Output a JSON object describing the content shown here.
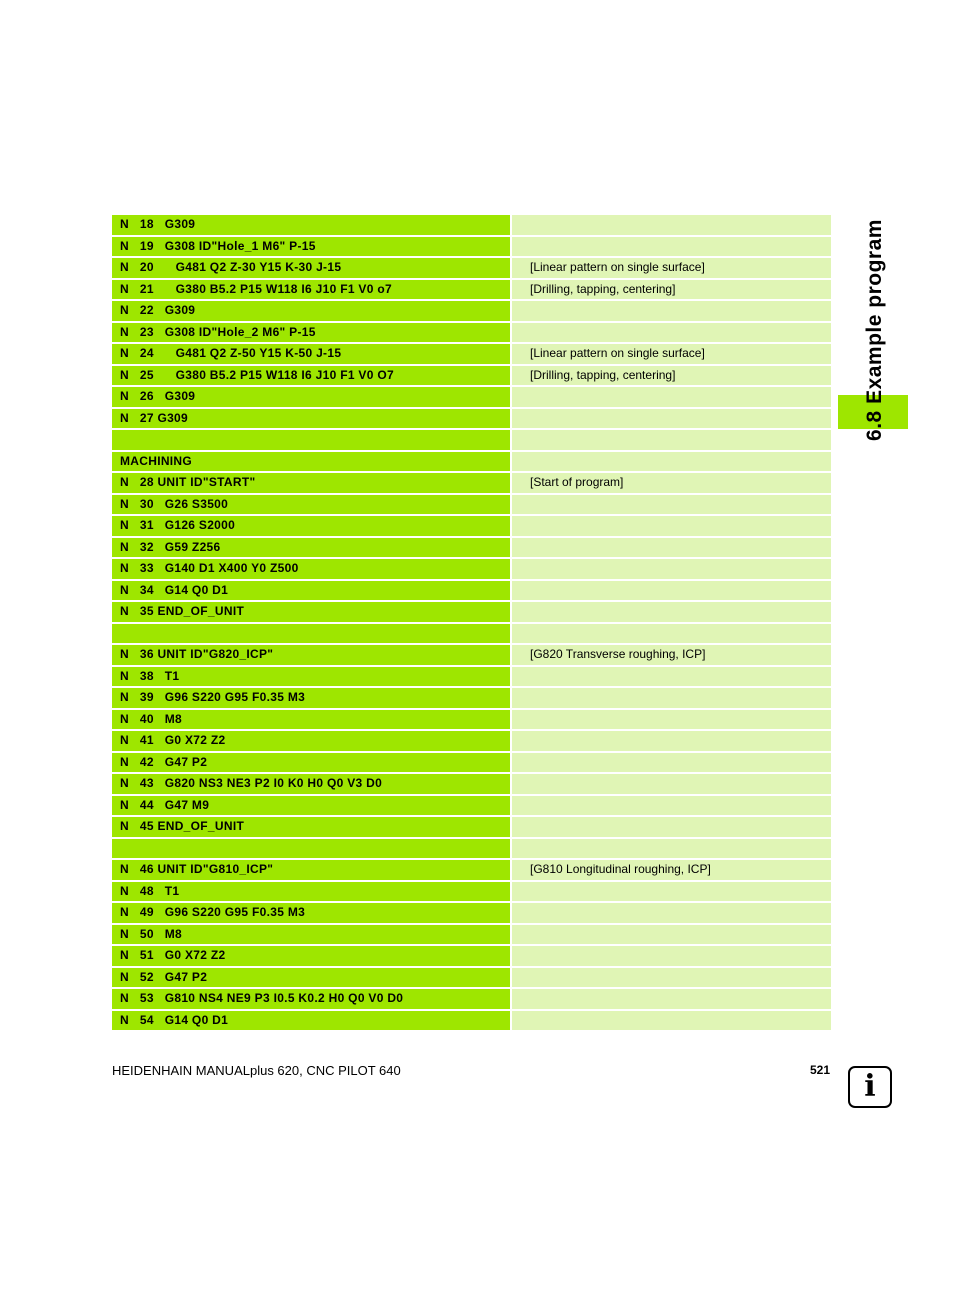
{
  "section": {
    "title": "6.8 Example program"
  },
  "footer": {
    "manual": "HEIDENHAIN MANUALplus 620, CNC PILOT 640",
    "page": "521"
  },
  "icon": {
    "name": "info-icon",
    "glyph": "i"
  },
  "colors": {
    "code_bg": "#9ee600",
    "comment_bg": "#e0f5b5"
  },
  "rows": [
    {
      "code": "N   18   G309",
      "comment": ""
    },
    {
      "code": "N   19   G308 ID\"Hole_1 M6\" P-15",
      "comment": ""
    },
    {
      "code": "N   20      G481 Q2 Z-30 Y15 K-30 J-15",
      "comment": "[Linear pattern on single surface]"
    },
    {
      "code": "N   21      G380 B5.2 P15 W118 I6 J10 F1 V0 o7",
      "comment": "[Drilling, tapping, centering]"
    },
    {
      "code": "N   22   G309",
      "comment": ""
    },
    {
      "code": "N   23   G308 ID\"Hole_2 M6\" P-15",
      "comment": ""
    },
    {
      "code": "N   24      G481 Q2 Z-50 Y15 K-50 J-15",
      "comment": "[Linear pattern on single surface]"
    },
    {
      "code": "N   25      G380 B5.2 P15 W118 I6 J10 F1 V0 O7",
      "comment": "[Drilling, tapping, centering]"
    },
    {
      "code": "N   26   G309",
      "comment": ""
    },
    {
      "code": "N   27 G309",
      "comment": ""
    },
    {
      "code": "",
      "comment": ""
    },
    {
      "code": "MACHINING",
      "comment": ""
    },
    {
      "code": "N   28 UNIT ID\"START\"",
      "comment": "[Start of program]"
    },
    {
      "code": "N   30   G26 S3500",
      "comment": ""
    },
    {
      "code": "N   31   G126 S2000",
      "comment": ""
    },
    {
      "code": "N   32   G59 Z256",
      "comment": ""
    },
    {
      "code": "N   33   G140 D1 X400 Y0 Z500",
      "comment": ""
    },
    {
      "code": "N   34   G14 Q0 D1",
      "comment": ""
    },
    {
      "code": "N   35 END_OF_UNIT",
      "comment": ""
    },
    {
      "code": "",
      "comment": ""
    },
    {
      "code": "N   36 UNIT ID\"G820_ICP\"",
      "comment": "[G820 Transverse roughing, ICP]"
    },
    {
      "code": "N   38   T1",
      "comment": ""
    },
    {
      "code": "N   39   G96 S220 G95 F0.35 M3",
      "comment": ""
    },
    {
      "code": "N   40   M8",
      "comment": ""
    },
    {
      "code": "N   41   G0 X72 Z2",
      "comment": ""
    },
    {
      "code": "N   42   G47 P2",
      "comment": ""
    },
    {
      "code": "N   43   G820 NS3 NE3 P2 I0 K0 H0 Q0 V3 D0",
      "comment": ""
    },
    {
      "code": "N   44   G47 M9",
      "comment": ""
    },
    {
      "code": "N   45 END_OF_UNIT",
      "comment": ""
    },
    {
      "code": "",
      "comment": ""
    },
    {
      "code": "N   46 UNIT ID\"G810_ICP\"",
      "comment": "[G810 Longitudinal roughing, ICP]"
    },
    {
      "code": "N   48   T1",
      "comment": ""
    },
    {
      "code": "N   49   G96 S220 G95 F0.35 M3",
      "comment": ""
    },
    {
      "code": "N   50   M8",
      "comment": ""
    },
    {
      "code": "N   51   G0 X72 Z2",
      "comment": ""
    },
    {
      "code": "N   52   G47 P2",
      "comment": ""
    },
    {
      "code": "N   53   G810 NS4 NE9 P3 I0.5 K0.2 H0 Q0 V0 D0",
      "comment": ""
    },
    {
      "code": "N   54   G14 Q0 D1",
      "comment": ""
    }
  ]
}
